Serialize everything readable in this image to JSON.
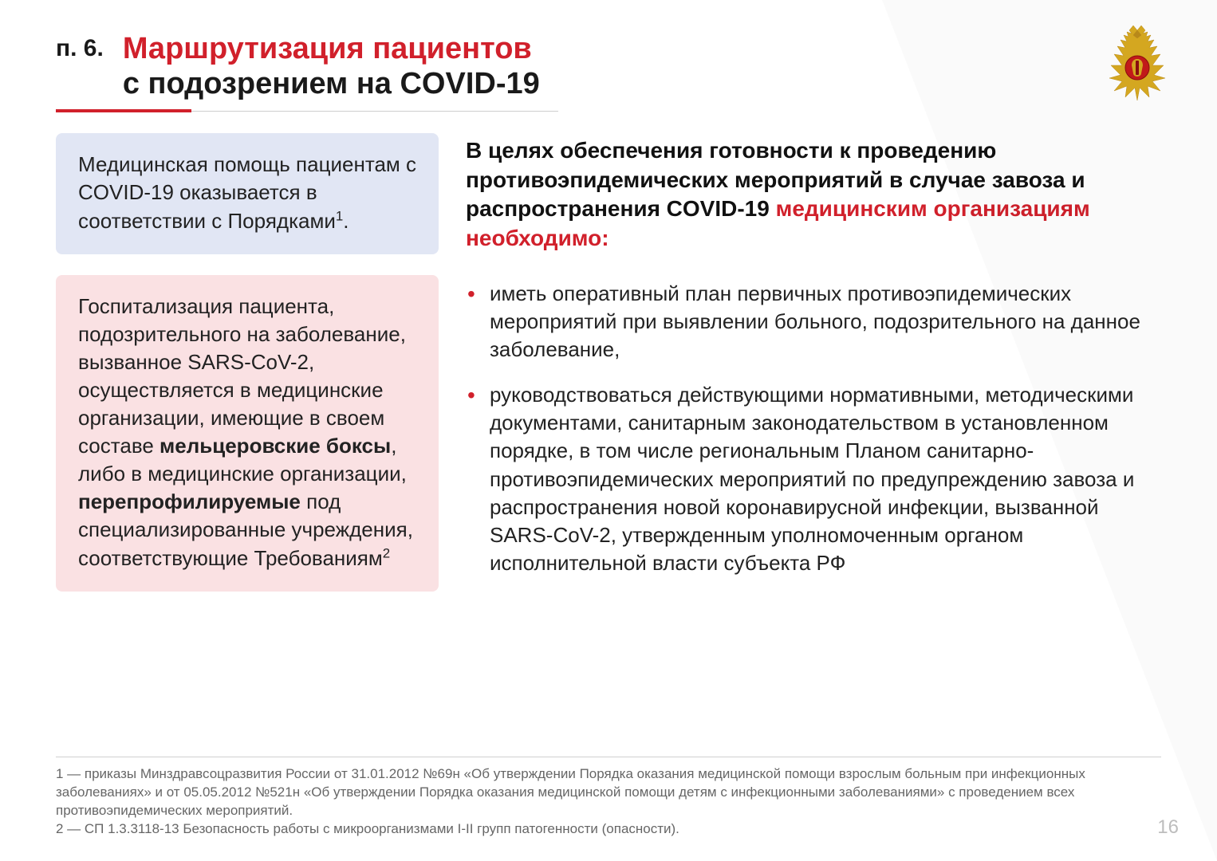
{
  "section_label": "п. 6.",
  "title_line1": "Маршрутизация пациентов",
  "title_line2": "с подозрением на COVID-19",
  "colors": {
    "accent": "#d1202b",
    "box_blue": "#e1e6f4",
    "box_pink": "#fae1e3",
    "text": "#222222",
    "muted": "#666666",
    "page_num": "#bdbdbd"
  },
  "logo": {
    "name": "ministry-emblem",
    "gold": "#d4a720",
    "red": "#c11a1a"
  },
  "left": {
    "box1_html": "Медицинская помощь пациентам с COVID-19 оказывается в соответствии с Порядками<sup>1</sup>.",
    "box2_html": "Госпитализация пациента, подозрительного на заболевание, вызванное SARS-CoV-2, осуществляется в медицинские организации, имеющие в своем составе <b>мельцеровские боксы</b>, либо в медицинские организации, <b>перепрофилируемые</b> под специализированные учреждения, соответствующие Требованиям<sup>2</sup>"
  },
  "right": {
    "intro_black": "В целях обеспечения готовности к проведению противоэпидемических мероприятий в случае завоза и распространения COVID-19",
    "intro_red": "медицинским организациям необходимо:",
    "bullets": [
      "иметь оперативный план первичных противоэпидемических мероприятий при выявлении больного, подозрительного на данное заболевание,",
      "руководствоваться действующими нормативными, методическими документами, санитарным законодательством в установленном порядке, в том числе региональным Планом санитарно-противоэпидемических мероприятий по предупреждению завоза и распространения новой коронавирусной инфекции, вызванной SARS-CoV-2, утвержденным уполномоченным органом исполнительной власти субъекта РФ"
    ]
  },
  "footnotes": [
    "1 — приказы Минздравсоцразвития России от 31.01.2012 №69н «Об утверждении Порядка оказания медицинской помощи взрослым больным при инфекционных заболеваниях» и от 05.05.2012 №521н «Об утверждении Порядка оказания медицинской помощи детям с инфекционными заболеваниями» с проведением всех противоэпидемических мероприятий.",
    "2 — СП 1.3.3118-13 Безопасность работы с микроорганизмами I-II групп патогенности (опасности)."
  ],
  "page_number": "16"
}
